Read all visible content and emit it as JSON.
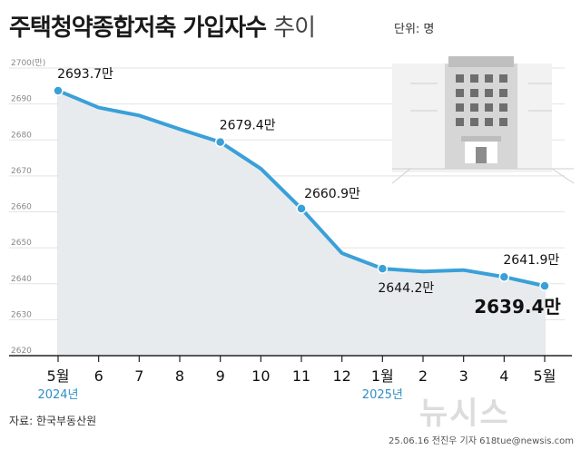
{
  "header": {
    "title_main": "주택청약종합저축 가입자수",
    "title_sub": "추이",
    "unit": "단위: 명"
  },
  "footer": {
    "source": "자료: 한국부동산원",
    "logo": "뉴시스",
    "credit": "25.06.16 전진우 기자 618tue@newsis.com"
  },
  "colors": {
    "line": "#3aa0d8",
    "area": "#e8ebee",
    "year_label": "#2f8fc8"
  },
  "chart_data": {
    "type": "line",
    "title": "주택청약종합저축 가입자수 추이",
    "unit": "단위: 명",
    "categories": [
      "5월",
      "6",
      "7",
      "8",
      "9",
      "10",
      "11",
      "12",
      "1월",
      "2",
      "3",
      "4",
      "5월"
    ],
    "year_labels": [
      {
        "text": "2024년",
        "category": "5월",
        "index": 0
      },
      {
        "text": "2025년",
        "category": "1월",
        "index": 8
      }
    ],
    "values": [
      2693.7,
      2689.0,
      2686.8,
      2683.0,
      2679.4,
      2672.0,
      2660.9,
      2648.5,
      2644.2,
      2643.4,
      2643.8,
      2641.9,
      2639.4
    ],
    "labeled_points": [
      {
        "index": 0,
        "label": "2693.7만"
      },
      {
        "index": 4,
        "label": "2679.4만"
      },
      {
        "index": 6,
        "label": "2660.9만"
      },
      {
        "index": 8,
        "label": "2644.2만"
      },
      {
        "index": 11,
        "label": "2641.9만"
      },
      {
        "index": 12,
        "label": "2639.4만",
        "emphasis": true
      }
    ],
    "ylim": [
      2620,
      2700
    ],
    "yticks": [
      "2620",
      "2630",
      "2640",
      "2650",
      "2660",
      "2670",
      "2680",
      "2690",
      "2700(만)"
    ],
    "grid": true
  }
}
